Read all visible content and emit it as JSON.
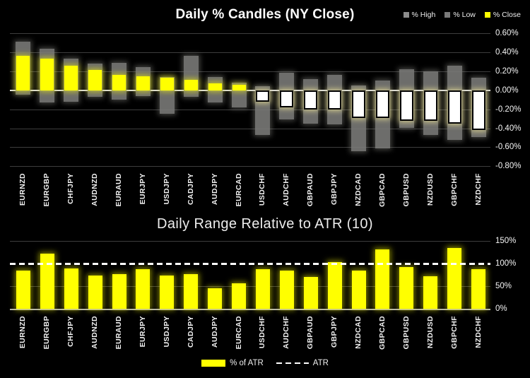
{
  "page": {
    "background": "#000000"
  },
  "top_chart": {
    "title": "Daily % Candles (NY Close)",
    "legend": [
      {
        "label": "% High",
        "color": "#8c8c8c"
      },
      {
        "label": "% Low",
        "color": "#7a7a7a"
      },
      {
        "label": "% Close",
        "color": "#ffff00"
      }
    ],
    "y_ticks": [
      "0.60%",
      "0.40%",
      "0.20%",
      "0.00%",
      "-0.20%",
      "-0.40%",
      "-0.60%",
      "-0.80%"
    ]
  },
  "bottom_chart": {
    "title": "Daily Range Relative to ATR (10)",
    "y_ticks": [
      "150%",
      "100%",
      "50%",
      "0%"
    ],
    "legend": [
      {
        "label": "% of ATR",
        "type": "swatch",
        "color": "#ffff00"
      },
      {
        "label": "ATR",
        "type": "dashed-line",
        "color": "#ffffff"
      }
    ]
  },
  "chart_data": [
    {
      "type": "candlestick",
      "title": "Daily % Candles (NY Close)",
      "categories": [
        "EURNZD",
        "EURGBP",
        "CHFJPY",
        "AUDNZD",
        "EURAUD",
        "EURJPY",
        "USDJPY",
        "CADJPY",
        "AUDJPY",
        "EURCAD",
        "USDCHF",
        "AUDCHF",
        "GBPAUD",
        "GBPJPY",
        "NZDCAD",
        "GBPCAD",
        "GBPUSD",
        "NZDUSD",
        "GBPCHF",
        "NZDCHF"
      ],
      "series": [
        {
          "name": "% High",
          "values": [
            0.51,
            0.44,
            0.33,
            0.28,
            0.29,
            0.24,
            0.14,
            0.36,
            0.14,
            0.08,
            0.04,
            0.18,
            0.12,
            0.16,
            0.05,
            0.1,
            0.22,
            0.2,
            0.26,
            0.13
          ]
        },
        {
          "name": "% Low",
          "values": [
            -0.05,
            -0.13,
            -0.12,
            -0.07,
            -0.1,
            -0.06,
            -0.25,
            -0.07,
            -0.13,
            -0.18,
            -0.47,
            -0.31,
            -0.35,
            -0.36,
            -0.64,
            -0.61,
            -0.4,
            -0.47,
            -0.52,
            -0.49
          ]
        },
        {
          "name": "% Close",
          "values": [
            0.36,
            0.33,
            0.26,
            0.21,
            0.16,
            0.15,
            0.13,
            0.11,
            0.07,
            0.06,
            -0.12,
            -0.18,
            -0.2,
            -0.2,
            -0.29,
            -0.29,
            -0.32,
            -0.32,
            -0.35,
            -0.42
          ]
        }
      ],
      "ylim": [
        -0.8,
        0.6
      ],
      "ytick_step": 0.2,
      "grid": true,
      "legend_position": "top-right",
      "colors": {
        "range_bar": "#7c7c7a",
        "close_up": "#ffff00",
        "close_down": "#ffffff",
        "background": "#000000"
      }
    },
    {
      "type": "bar",
      "title": "Daily Range Relative to ATR (10)",
      "categories": [
        "EURNZD",
        "EURGBP",
        "CHFJPY",
        "AUDNZD",
        "EURAUD",
        "EURJPY",
        "USDJPY",
        "CADJPY",
        "AUDJPY",
        "EURCAD",
        "USDCHF",
        "AUDCHF",
        "GBPAUD",
        "GBPJPY",
        "NZDCAD",
        "GBPCAD",
        "GBPUSD",
        "NZDUSD",
        "GBPCHF",
        "NZDCHF"
      ],
      "values": [
        84,
        122,
        89,
        73,
        77,
        87,
        74,
        76,
        45,
        57,
        88,
        85,
        71,
        103,
        85,
        131,
        92,
        72,
        134,
        88
      ],
      "ylim": [
        0,
        150
      ],
      "ytick_step": 50,
      "grid": true,
      "bar_color": "#ffff00",
      "reference_line": {
        "label": "ATR",
        "value": 100,
        "style": "dashed",
        "color": "#ffffff"
      },
      "legend_position": "bottom"
    }
  ]
}
